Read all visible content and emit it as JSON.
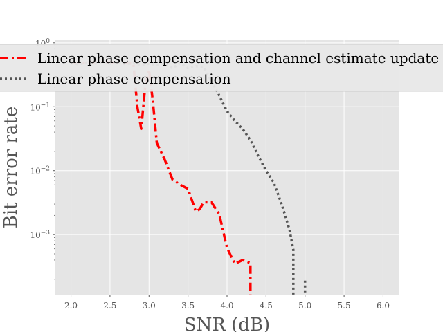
{
  "chart_data": {
    "type": "line",
    "xlabel": "SNR (dB)",
    "ylabel": "Bit error rate",
    "xlim": [
      1.8,
      6.2
    ],
    "ylim": [
      0.000115,
      1.1
    ],
    "yscale": "log",
    "grid": true,
    "legend_position": "top",
    "x_ticks": [
      2.0,
      2.5,
      3.0,
      3.5,
      4.0,
      4.5,
      5.0,
      5.5,
      6.0
    ],
    "x_tick_labels": [
      "2.0",
      "2.5",
      "3.0",
      "3.5",
      "4.0",
      "4.5",
      "5.0",
      "5.5",
      "6.0"
    ],
    "y_ticks": [
      {
        "value": 0.001,
        "base": "10",
        "exp": "−3"
      },
      {
        "value": 0.01,
        "base": "10",
        "exp": "−2"
      },
      {
        "value": 0.1,
        "base": "10",
        "exp": "−1"
      },
      {
        "value": 1.0,
        "base": "10",
        "exp": "0"
      }
    ],
    "series": [
      {
        "name": "Linear phase compensation and channel estimate update",
        "color": "#ff0000",
        "style": "dashdot",
        "points": [
          [
            2.0,
            0.48
          ],
          [
            2.2,
            0.49
          ],
          [
            2.4,
            0.5
          ],
          [
            2.6,
            0.49
          ],
          [
            2.7,
            0.48
          ],
          [
            2.8,
            0.47
          ],
          [
            2.85,
            0.1
          ],
          [
            2.9,
            0.045
          ],
          [
            2.95,
            0.2
          ],
          [
            3.0,
            0.38
          ],
          [
            3.05,
            0.12
          ],
          [
            3.1,
            0.027
          ],
          [
            3.2,
            0.015
          ],
          [
            3.3,
            0.0073
          ],
          [
            3.4,
            0.006
          ],
          [
            3.5,
            0.0052
          ],
          [
            3.6,
            0.0023
          ],
          [
            3.65,
            0.0025
          ],
          [
            3.7,
            0.0032
          ],
          [
            3.8,
            0.0032
          ],
          [
            3.9,
            0.0021
          ],
          [
            4.0,
            0.00062
          ],
          [
            4.1,
            0.00035
          ],
          [
            4.2,
            0.0004
          ],
          [
            4.3,
            0.00036
          ],
          [
            4.3,
            0.000115
          ]
        ]
      },
      {
        "name": "Linear phase compensation",
        "color": "#555555",
        "style": "dotted",
        "points": [
          [
            2.0,
            0.48
          ],
          [
            2.1,
            0.46
          ],
          [
            2.2,
            0.49
          ],
          [
            2.3,
            0.47
          ],
          [
            2.4,
            0.5
          ],
          [
            2.5,
            0.47
          ],
          [
            2.6,
            0.49
          ],
          [
            2.7,
            0.46
          ],
          [
            2.8,
            0.48
          ],
          [
            2.9,
            0.45
          ],
          [
            3.0,
            0.47
          ],
          [
            3.1,
            0.45
          ],
          [
            3.2,
            0.47
          ],
          [
            3.3,
            0.4
          ],
          [
            3.4,
            0.48
          ],
          [
            3.5,
            0.4
          ],
          [
            3.6,
            0.43
          ],
          [
            3.7,
            0.42
          ],
          [
            3.8,
            0.25
          ],
          [
            3.9,
            0.15
          ],
          [
            4.0,
            0.085
          ],
          [
            4.1,
            0.06
          ],
          [
            4.2,
            0.045
          ],
          [
            4.3,
            0.03
          ],
          [
            4.4,
            0.017
          ],
          [
            4.5,
            0.01
          ],
          [
            4.6,
            0.0065
          ],
          [
            4.7,
            0.003
          ],
          [
            4.8,
            0.0012
          ],
          [
            4.85,
            0.00058
          ],
          [
            4.85,
            0.000115
          ]
        ]
      },
      {
        "name": "",
        "color": "#555555",
        "style": "dotted",
        "points": [
          [
            5.0,
            0.00019
          ],
          [
            5.0,
            0.000115
          ]
        ]
      }
    ]
  }
}
